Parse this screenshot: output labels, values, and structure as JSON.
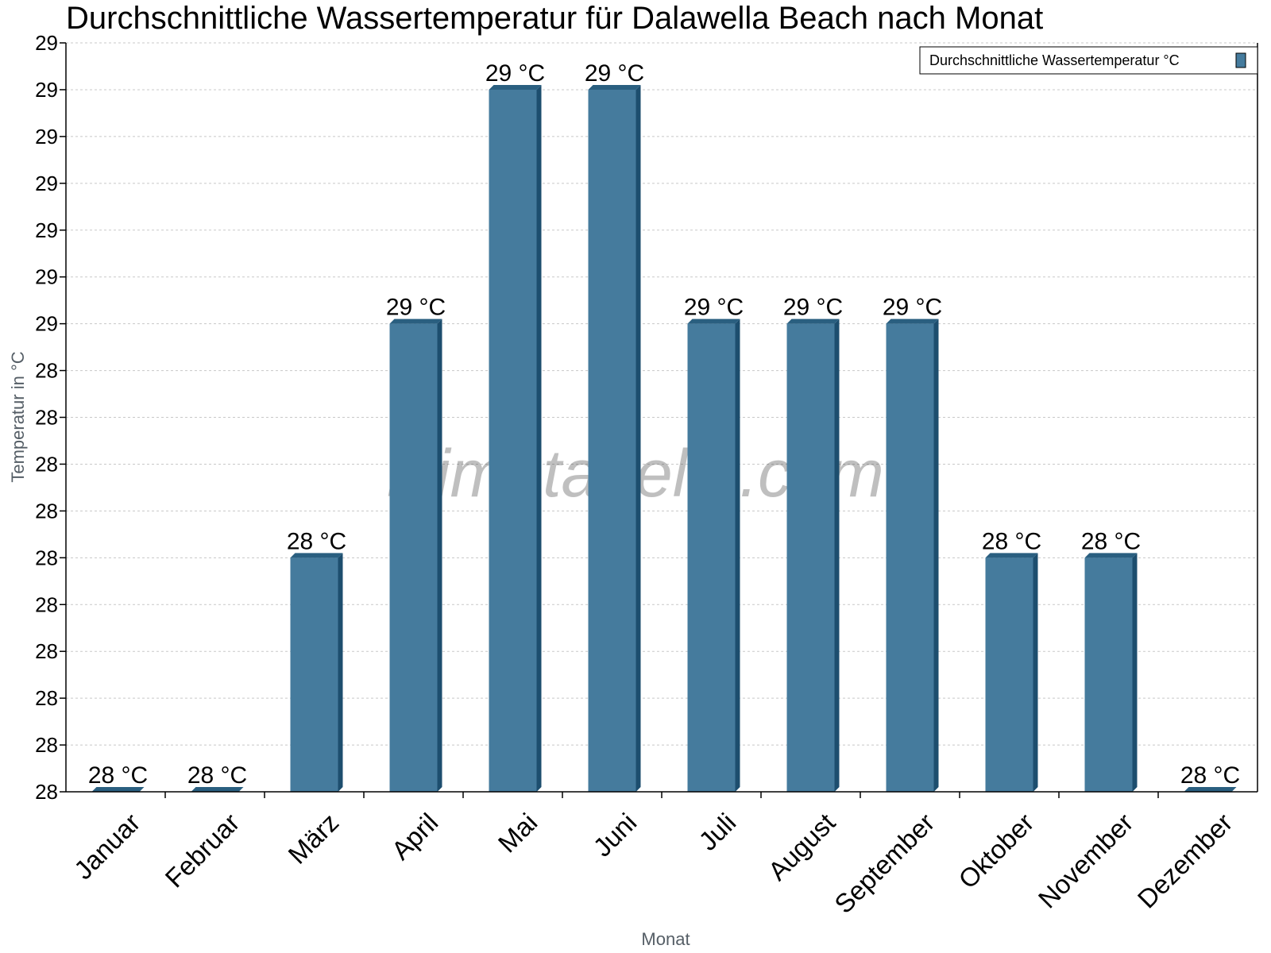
{
  "chart_data": {
    "type": "bar",
    "title": "Durchschnittliche Wassertemperatur für Dalawella Beach nach Monat",
    "xlabel": "Monat",
    "ylabel": "Temperatur in °C",
    "categories": [
      "Januar",
      "Februar",
      "März",
      "April",
      "Mai",
      "Juni",
      "Juli",
      "August",
      "September",
      "Oktober",
      "November",
      "Dezember"
    ],
    "series": [
      {
        "name": "Durchschnittliche Wassertemperatur °C",
        "values": [
          27.5,
          27.5,
          28.0,
          28.5,
          29.0,
          29.0,
          28.5,
          28.5,
          28.5,
          28.0,
          28.0,
          27.5
        ],
        "data_labels": [
          "28 °C",
          "28 °C",
          "28 °C",
          "29 °C",
          "29 °C",
          "29 °C",
          "29 °C",
          "29 °C",
          "29 °C",
          "28 °C",
          "28 °C",
          "28 °C"
        ]
      }
    ],
    "ylim": [
      27.5,
      29.1
    ],
    "yticks": [
      27.5,
      27.6,
      27.7,
      27.8,
      27.9,
      28.0,
      28.1,
      28.2,
      28.3,
      28.4,
      28.5,
      28.6,
      28.7,
      28.8,
      28.9,
      29.0,
      29.1
    ],
    "ytick_labels": [
      "28",
      "28",
      "28",
      "28",
      "28",
      "28",
      "28",
      "28",
      "28",
      "28",
      "29",
      "29",
      "29",
      "29",
      "29",
      "29",
      "29"
    ],
    "grid": true,
    "legend": "top-right",
    "watermark": "klimatabelle.com",
    "colors": {
      "bar_front": "#457b9d",
      "bar_side": "#1d4e6e",
      "bar_top": "#2a5f80"
    }
  }
}
